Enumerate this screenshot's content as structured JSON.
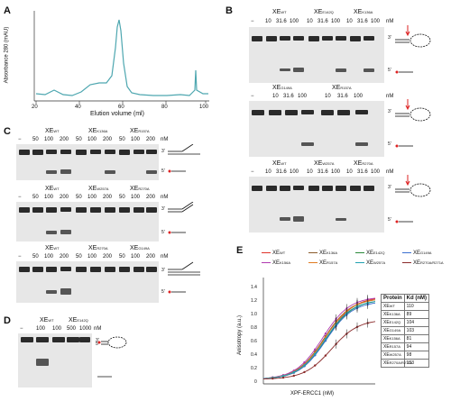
{
  "panels": {
    "A": {
      "letter": "A",
      "xlabel": "Elution volume (ml)",
      "ylabel": "Absorbance 280 (mAU)",
      "xticks": [
        "20",
        "40",
        "60",
        "80",
        "100"
      ],
      "line_color": "#4ea7b0"
    },
    "B": {
      "letter": "B",
      "unit": "nM",
      "minus": "−",
      "gel1_groups": [
        "XE",
        "XE",
        "XE"
      ],
      "gel1_sups": [
        "WT",
        "E142Q",
        "K136A"
      ],
      "gel2_groups": [
        "XE",
        "XE"
      ],
      "gel2_sups": [
        "G149A",
        "R157A"
      ],
      "gel3_groups": [
        "XE",
        "XE",
        "XE"
      ],
      "gel3_sups": [
        "WT",
        "W257A",
        "R270A"
      ],
      "conc": [
        "10",
        "31.6",
        "100"
      ],
      "end3": "3'",
      "end5": "5'"
    },
    "C": {
      "letter": "C",
      "unit": "nM",
      "minus": "−",
      "gel1_groups": [
        "XE",
        "XE",
        "XE"
      ],
      "gel1_sups": [
        "WT",
        "K136A",
        "R157A"
      ],
      "gel2_groups": [
        "XE",
        "XE",
        "XE"
      ],
      "gel2_sups": [
        "WT",
        "W257A",
        "R270A"
      ],
      "gel3_groups": [
        "XE",
        "XE",
        "XE"
      ],
      "gel3_sups": [
        "WT",
        "R270A",
        "G149A"
      ],
      "conc": [
        "50",
        "100",
        "200"
      ],
      "end3": "3'",
      "end5": "5'"
    },
    "D": {
      "letter": "D",
      "groups": [
        "XE",
        "XE"
      ],
      "sups": [
        "WT",
        "E142Q"
      ],
      "minus": "−",
      "conc": [
        "100",
        "100",
        "500",
        "1000"
      ],
      "unit": "nM",
      "end3": "3'",
      "end5": "5'"
    },
    "E": {
      "letter": "E",
      "ylabel": "Anisotropy (a.u.)",
      "xlabel": "XPF-ERCC1 (nM)",
      "yticks": [
        "0",
        "0.2",
        "0.4",
        "0.6",
        "0.8",
        "1.0",
        "1.2",
        "1.4"
      ],
      "legend": [
        {
          "base": "XE",
          "sup": "WT",
          "color": "#e0332a"
        },
        {
          "base": "XE",
          "sup": "K136A",
          "color": "#8a5a2a"
        },
        {
          "base": "XE",
          "sup": "E142Q",
          "color": "#2a8a3a"
        },
        {
          "base": "XE",
          "sup": "G149A",
          "color": "#3a6fd0"
        },
        {
          "base": "XE",
          "sup": "K156A",
          "color": "#b03ab0"
        },
        {
          "base": "XE",
          "sup": "R157A",
          "color": "#e07a20"
        },
        {
          "base": "XE",
          "sup": "W257A",
          "color": "#20a0b0"
        },
        {
          "base": "XE",
          "sup": "R270A/R271A",
          "color": "#8a2a2a"
        }
      ],
      "table": {
        "header": [
          "Protein",
          "Kd (nM)"
        ],
        "rows": [
          {
            "base": "XE",
            "sup": "WT",
            "kd": "110"
          },
          {
            "base": "XE",
            "sup": "K136A",
            "kd": "89"
          },
          {
            "base": "XE",
            "sup": "E142Q",
            "kd": "104"
          },
          {
            "base": "XE",
            "sup": "G149A",
            "kd": "103"
          },
          {
            "base": "XE",
            "sup": "K156A",
            "kd": "81"
          },
          {
            "base": "XE",
            "sup": "R157A",
            "kd": "94"
          },
          {
            "base": "XE",
            "sup": "W257A",
            "kd": "98"
          },
          {
            "base": "XE",
            "sup": "R270A/R271A",
            "kd": "153"
          }
        ]
      }
    }
  }
}
